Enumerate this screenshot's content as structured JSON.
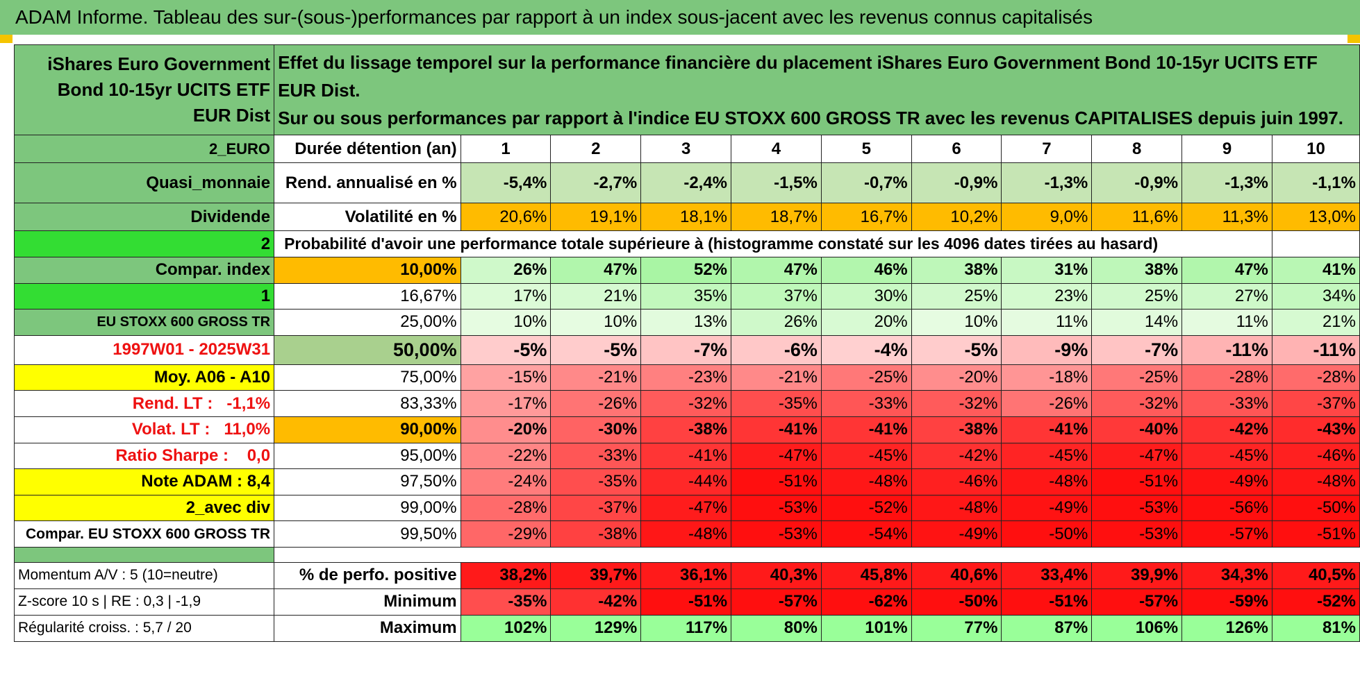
{
  "title": "ADAM Informe. Tableau des sur-(sous-)performances par rapport à un index sous-jacent avec les revenus connus capitalisés",
  "fund_name": "iShares Euro Government Bond 10-15yr UCITS ETF EUR Dist",
  "description_line1": "Effet du lissage temporel sur la performance financière du placement iShares Euro Government Bond 10-15yr UCITS ETF EUR Dist.",
  "description_line2": "Sur ou sous performances par rapport à l'indice EU STOXX 600 GROSS TR avec les revenus CAPITALISES depuis juin 1997.",
  "left_labels": {
    "currency": "2_EURO",
    "category": "Quasi_monnaie",
    "distribution": "Dividende",
    "code_2": "2",
    "compar_index": "Compar. index",
    "code_1": "1",
    "index_name": "EU STOXX 600 GROSS TR",
    "period": "1997W01 - 2025W31",
    "moy": "Moy. A06 - A10",
    "rend_lt_label": "Rend. LT :",
    "rend_lt_value": "-1,1%",
    "volat_lt_label": "Volat. LT :",
    "volat_lt_value": "11,0%",
    "sharpe_label": "Ratio Sharpe :",
    "sharpe_value": "0,0",
    "note_adam": "Note ADAM : 8,4",
    "avec_div": "2_avec div",
    "compar_full": "Compar. EU STOXX 600 GROSS TR",
    "momentum": "Momentum A/V : 5 (10=neutre)",
    "zscore": "Z-score 10 s | RE : 0,3 | -1,9",
    "regularite": "Régularité croiss. : 5,7 / 20"
  },
  "row_labels": {
    "duree": "Durée détention (an)",
    "rend": "Rend. annualisé en %",
    "volat": "Volatilité en %",
    "proba": "Probabilité d'avoir une performance totale supérieure à (histogramme constaté sur les 4096 dates tirées au hasard)",
    "perfo_pos": "% de perfo. positive",
    "minimum": "Minimum",
    "maximum": "Maximum"
  },
  "years": [
    "1",
    "2",
    "3",
    "4",
    "5",
    "6",
    "7",
    "8",
    "9",
    "10"
  ],
  "rend_values": [
    "-5,4%",
    "-2,7%",
    "-2,4%",
    "-1,5%",
    "-0,7%",
    "-0,9%",
    "-1,3%",
    "-0,9%",
    "-1,3%",
    "-1,1%"
  ],
  "volat_values": [
    "20,6%",
    "19,1%",
    "18,1%",
    "18,7%",
    "16,7%",
    "10,2%",
    "9,0%",
    "11,6%",
    "11,3%",
    "13,0%"
  ],
  "percentile_rows": [
    {
      "pct": "10,00%",
      "values": [
        "26%",
        "47%",
        "52%",
        "47%",
        "46%",
        "38%",
        "31%",
        "38%",
        "47%",
        "41%"
      ]
    },
    {
      "pct": "16,67%",
      "values": [
        "17%",
        "21%",
        "35%",
        "37%",
        "30%",
        "25%",
        "23%",
        "25%",
        "27%",
        "34%"
      ]
    },
    {
      "pct": "25,00%",
      "values": [
        "10%",
        "10%",
        "13%",
        "26%",
        "20%",
        "10%",
        "11%",
        "14%",
        "11%",
        "21%"
      ]
    },
    {
      "pct": "50,00%",
      "values": [
        "-5%",
        "-5%",
        "-7%",
        "-6%",
        "-4%",
        "-5%",
        "-9%",
        "-7%",
        "-11%",
        "-11%"
      ]
    },
    {
      "pct": "75,00%",
      "values": [
        "-15%",
        "-21%",
        "-23%",
        "-21%",
        "-25%",
        "-20%",
        "-18%",
        "-25%",
        "-28%",
        "-28%"
      ]
    },
    {
      "pct": "83,33%",
      "values": [
        "-17%",
        "-26%",
        "-32%",
        "-35%",
        "-33%",
        "-32%",
        "-26%",
        "-32%",
        "-33%",
        "-37%"
      ]
    },
    {
      "pct": "90,00%",
      "values": [
        "-20%",
        "-30%",
        "-38%",
        "-41%",
        "-41%",
        "-38%",
        "-41%",
        "-40%",
        "-42%",
        "-43%"
      ]
    },
    {
      "pct": "95,00%",
      "values": [
        "-22%",
        "-33%",
        "-41%",
        "-47%",
        "-45%",
        "-42%",
        "-45%",
        "-47%",
        "-45%",
        "-46%"
      ]
    },
    {
      "pct": "97,50%",
      "values": [
        "-24%",
        "-35%",
        "-44%",
        "-51%",
        "-48%",
        "-46%",
        "-48%",
        "-51%",
        "-49%",
        "-48%"
      ]
    },
    {
      "pct": "99,00%",
      "values": [
        "-28%",
        "-37%",
        "-47%",
        "-53%",
        "-52%",
        "-48%",
        "-49%",
        "-53%",
        "-56%",
        "-50%"
      ]
    },
    {
      "pct": "99,50%",
      "values": [
        "-29%",
        "-38%",
        "-48%",
        "-53%",
        "-54%",
        "-49%",
        "-50%",
        "-53%",
        "-57%",
        "-51%"
      ]
    }
  ],
  "perfo_pos_values": [
    "38,2%",
    "39,7%",
    "36,1%",
    "40,3%",
    "45,8%",
    "40,6%",
    "33,4%",
    "39,9%",
    "34,3%",
    "40,5%"
  ],
  "minimum_values": [
    "-35%",
    "-42%",
    "-51%",
    "-57%",
    "-62%",
    "-50%",
    "-51%",
    "-57%",
    "-59%",
    "-52%"
  ],
  "maximum_values": [
    "102%",
    "129%",
    "117%",
    "80%",
    "101%",
    "77%",
    "87%",
    "106%",
    "126%",
    "81%"
  ],
  "colors": {
    "title_green": "#7dc67d",
    "label_green": "#7dc67d",
    "bright_green": "#33dd33",
    "yellow": "#ffff00",
    "orange": "#ffbb00",
    "red_text": "#ee1111",
    "rend_green": "#c6e5b4",
    "perfo_red": "#ff1a1a",
    "max_green": "#99ff99"
  }
}
